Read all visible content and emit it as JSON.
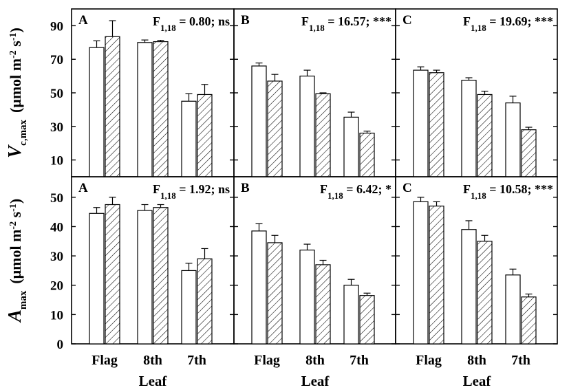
{
  "chart_data": {
    "type": "bar",
    "legend": "none",
    "grid": false,
    "categories": [
      "Flag",
      "8th",
      "7th"
    ],
    "xlabel": "Leaf",
    "rows": [
      {
        "id": "vcmax",
        "ylabel_symbol": "V",
        "ylabel_sub": "c,max",
        "ylabel_text": "(μmol m",
        "ylabel_exp1": "-2",
        "ylabel_mid": " s",
        "ylabel_exp2": "-1",
        "ylabel_close": ")",
        "ylim": [
          0,
          100
        ],
        "yticks": [
          "10",
          "30",
          "50",
          "70",
          "90"
        ],
        "ytick_values": [
          10,
          30,
          50,
          70,
          90
        ],
        "panels": [
          {
            "label": "A",
            "stat_prefix": "F",
            "stat_sub": "1,18",
            "stat_suffix": " = 0.80; ns",
            "series": [
              {
                "style": "open",
                "values": [
                  77,
                  80,
                  45
                ],
                "errors": [
                  4,
                  1.5,
                  4.5
                ]
              },
              {
                "style": "hatched",
                "values": [
                  83.5,
                  80.5,
                  49
                ],
                "errors": [
                  9.5,
                  0.8,
                  6
                ]
              }
            ]
          },
          {
            "label": "B",
            "stat_prefix": "F",
            "stat_sub": "1,18",
            "stat_suffix": " = 16.57; ***",
            "series": [
              {
                "style": "open",
                "values": [
                  66,
                  60,
                  35.5
                ],
                "errors": [
                  1.8,
                  3.5,
                  3
                ]
              },
              {
                "style": "hatched",
                "values": [
                  57,
                  49.5,
                  26
                ],
                "errors": [
                  4,
                  0.5,
                  1.2
                ]
              }
            ]
          },
          {
            "label": "C",
            "stat_prefix": "F",
            "stat_sub": "1,18",
            "stat_suffix": " = 19.69; ***",
            "series": [
              {
                "style": "open",
                "values": [
                  63.5,
                  57.5,
                  44
                ],
                "errors": [
                  2,
                  1.5,
                  4
                ]
              },
              {
                "style": "hatched",
                "values": [
                  62,
                  49,
                  28
                ],
                "errors": [
                  1.5,
                  2,
                  1.5
                ]
              }
            ]
          }
        ]
      },
      {
        "id": "amax",
        "ylabel_symbol": "A",
        "ylabel_sub": "max",
        "ylabel_text": "(μmol m",
        "ylabel_exp1": "-2",
        "ylabel_mid": " s",
        "ylabel_exp2": "-1",
        "ylabel_close": ")",
        "ylim": [
          0,
          57
        ],
        "yticks": [
          "0",
          "10",
          "20",
          "30",
          "40",
          "50"
        ],
        "ytick_values": [
          0,
          10,
          20,
          30,
          40,
          50
        ],
        "panels": [
          {
            "label": "A",
            "stat_prefix": "F",
            "stat_sub": "1,18",
            "stat_suffix": " = 1.92; ns",
            "series": [
              {
                "style": "open",
                "values": [
                  44.5,
                  45.5,
                  25
                ],
                "errors": [
                  2,
                  2,
                  2.5
                ]
              },
              {
                "style": "hatched",
                "values": [
                  47.5,
                  46.5,
                  29
                ],
                "errors": [
                  2.5,
                  1,
                  3.5
                ]
              }
            ]
          },
          {
            "label": "B",
            "stat_prefix": "F",
            "stat_sub": "1,18",
            "stat_suffix": " = 6.42; *",
            "series": [
              {
                "style": "open",
                "values": [
                  38.5,
                  32,
                  20
                ],
                "errors": [
                  2.5,
                  2,
                  2
                ]
              },
              {
                "style": "hatched",
                "values": [
                  34.5,
                  27,
                  16.5
                ],
                "errors": [
                  2.5,
                  1.5,
                  0.8
                ]
              }
            ]
          },
          {
            "label": "C",
            "stat_prefix": "F",
            "stat_sub": "1,18",
            "stat_suffix": " = 10.58; ***",
            "series": [
              {
                "style": "open",
                "values": [
                  48.5,
                  39,
                  23.5
                ],
                "errors": [
                  1.5,
                  3,
                  2
                ]
              },
              {
                "style": "hatched",
                "values": [
                  47,
                  35,
                  16
                ],
                "errors": [
                  1.5,
                  2,
                  1
                ]
              }
            ]
          }
        ]
      }
    ]
  }
}
